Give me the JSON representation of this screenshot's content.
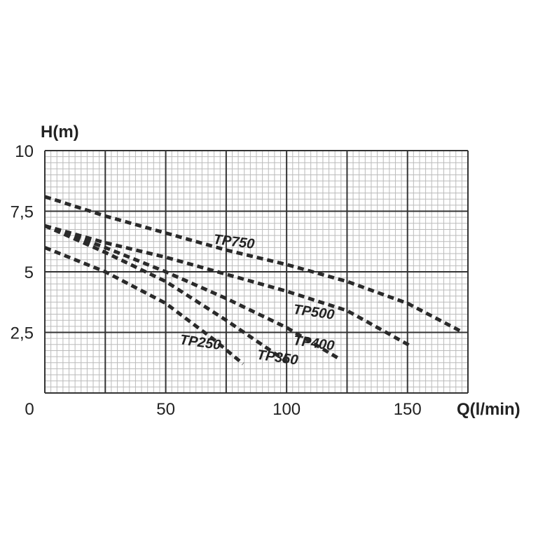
{
  "chart_data": {
    "type": "line",
    "title": "",
    "xlabel": "Q(l/min)",
    "ylabel": "H(m)",
    "xlim": [
      0,
      175
    ],
    "ylim": [
      0,
      10
    ],
    "x_ticks": [
      {
        "value": 0,
        "label": "0"
      },
      {
        "value": 50,
        "label": "50"
      },
      {
        "value": 100,
        "label": "100"
      },
      {
        "value": 150,
        "label": "150"
      }
    ],
    "y_ticks": [
      {
        "value": 2.5,
        "label": "2,5"
      },
      {
        "value": 5,
        "label": "5"
      },
      {
        "value": 7.5,
        "label": "7,5"
      },
      {
        "value": 10,
        "label": "10"
      }
    ],
    "grid": true,
    "colors": {
      "line": "#2a2a2a",
      "grid_major": "#333333",
      "grid_minor": "#bbbbbb",
      "text": "#222222"
    },
    "series": [
      {
        "name": "TP750",
        "x": [
          0,
          25,
          50,
          75,
          100,
          125,
          150,
          173
        ],
        "y": [
          8.1,
          7.3,
          6.6,
          5.9,
          5.3,
          4.6,
          3.7,
          2.5
        ]
      },
      {
        "name": "TP500",
        "x": [
          0,
          25,
          50,
          75,
          100,
          125,
          152
        ],
        "y": [
          6.9,
          6.2,
          5.6,
          4.9,
          4.2,
          3.4,
          1.9
        ]
      },
      {
        "name": "TP400",
        "x": [
          0,
          25,
          50,
          75,
          100,
          122
        ],
        "y": [
          6.9,
          6.0,
          5.0,
          3.9,
          2.7,
          1.4
        ]
      },
      {
        "name": "TP350",
        "x": [
          0,
          25,
          50,
          75,
          100
        ],
        "y": [
          6.9,
          5.8,
          4.6,
          3.0,
          1.3
        ]
      },
      {
        "name": "TP250",
        "x": [
          0,
          25,
          50,
          70,
          82
        ],
        "y": [
          6.0,
          5.0,
          3.7,
          2.2,
          1.2
        ]
      }
    ]
  }
}
